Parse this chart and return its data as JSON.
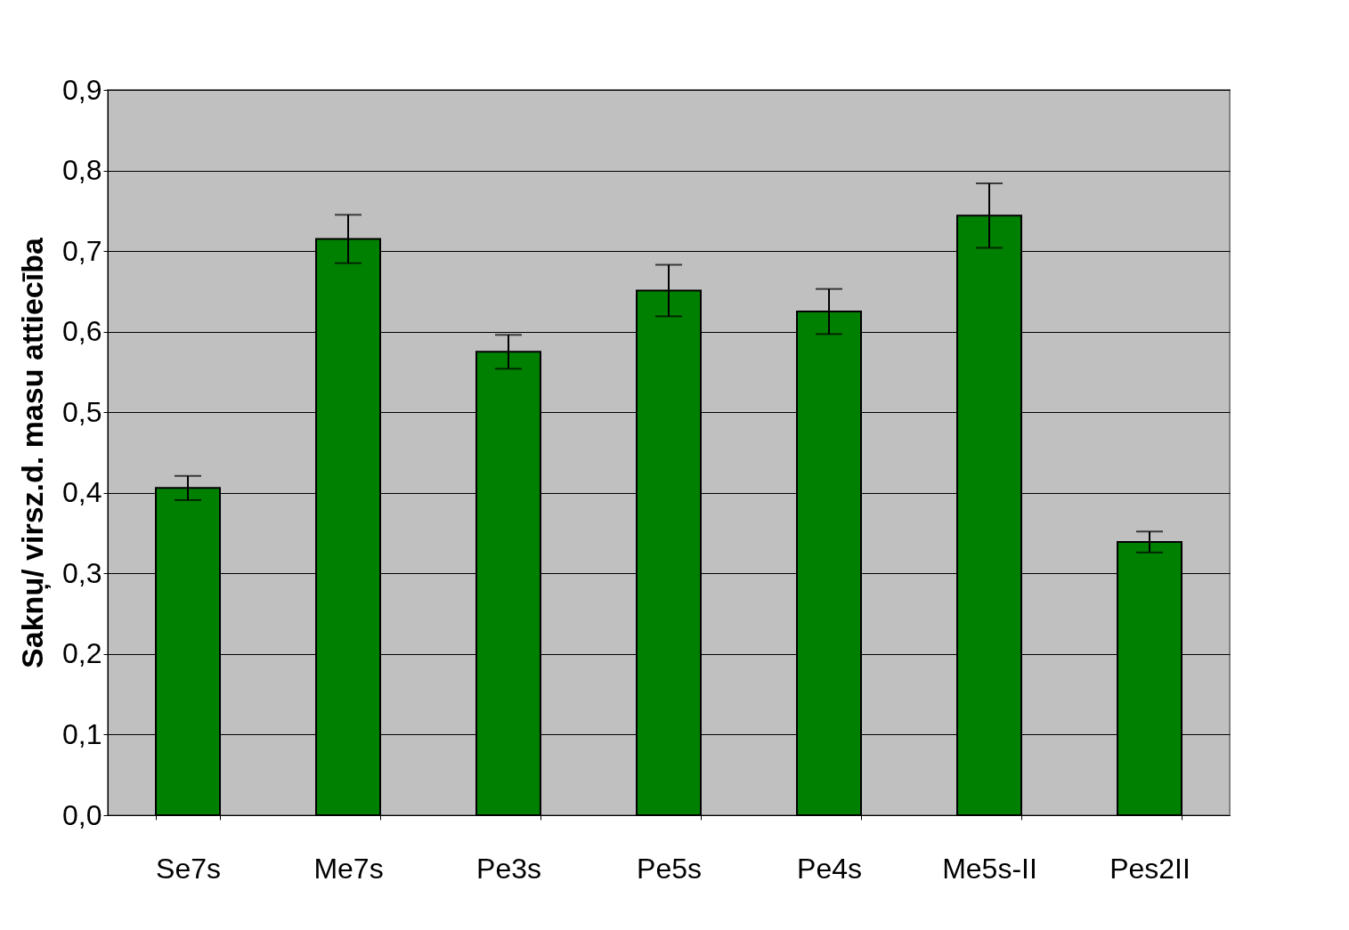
{
  "chart_data": {
    "type": "bar",
    "ylabel": "Saknu̦/ virsz.d. masu attiecība",
    "categories": [
      "Se7s",
      "Me7s",
      "Pe3s",
      "Pe5s",
      "Pe4s",
      "Me5s-II",
      "Pes2II"
    ],
    "values": [
      0.406,
      0.715,
      0.575,
      0.651,
      0.625,
      0.744,
      0.339
    ],
    "errors": [
      0.015,
      0.03,
      0.021,
      0.032,
      0.028,
      0.04,
      0.013
    ],
    "color": "#008000",
    "ylim": [
      0,
      0.9
    ],
    "yticks": [
      {
        "value": 0,
        "label": "0,0"
      },
      {
        "value": 0.1,
        "label": "0,1"
      },
      {
        "value": 0.2,
        "label": "0,2"
      },
      {
        "value": 0.3,
        "label": "0,3"
      },
      {
        "value": 0.4,
        "label": "0,4"
      },
      {
        "value": 0.5,
        "label": "0,5"
      },
      {
        "value": 0.6,
        "label": "0,6"
      },
      {
        "value": 0.7,
        "label": "0,7"
      },
      {
        "value": 0.8,
        "label": "0,8"
      },
      {
        "value": 0.9,
        "label": "0,9"
      }
    ],
    "grid": "y"
  }
}
